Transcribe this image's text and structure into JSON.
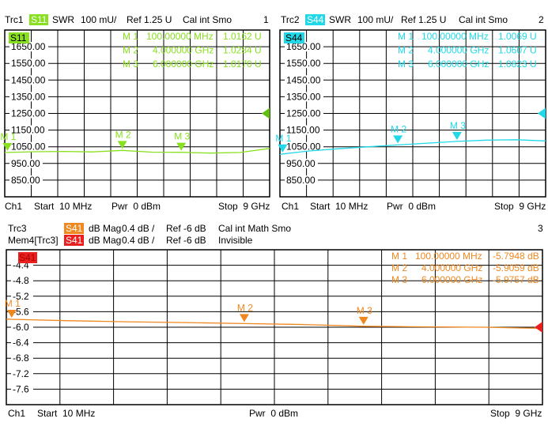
{
  "colors": {
    "trc1": "#88e020",
    "trc2": "#20d8e8",
    "trc3": "#f08820",
    "mem4": "#e82020",
    "grid": "#000000"
  },
  "panels": [
    {
      "header": {
        "trace": "Trc1",
        "param": "S11",
        "format": "SWR",
        "scale": "100 mU/",
        "ref": "Ref 1.25 U",
        "cal": "Cal int Smo",
        "num": "1"
      },
      "footer": {
        "ch": "Ch1",
        "start": "Start  10 MHz",
        "pwr": "Pwr  0 dBm",
        "stop": "Stop  9 GHz"
      },
      "markers": [
        {
          "name": "M 1",
          "freq": "100.00000 MHz",
          "value": "1.0162  U"
        },
        {
          "name": "M 2",
          "freq": "4.000000 GHz",
          "value": "1.0284  U"
        },
        {
          "name": "M 3",
          "freq": "6.000000 GHz",
          "value": "1.0170  U"
        }
      ]
    },
    {
      "header": {
        "trace": "Trc2",
        "param": "S44",
        "format": "SWR",
        "scale": "100 mU/",
        "ref": "Ref 1.25 U",
        "cal": "Cal int Smo",
        "num": "2"
      },
      "footer": {
        "ch": "Ch1",
        "start": "Start  10 MHz",
        "pwr": "Pwr  0 dBm",
        "stop": "Stop  9 GHz"
      },
      "markers": [
        {
          "name": "M 1",
          "freq": "100.00000 MHz",
          "value": "1.0069  U"
        },
        {
          "name": "M 2",
          "freq": "4.000000 GHz",
          "value": "1.0607  U"
        },
        {
          "name": "M 3",
          "freq": "6.000000 GHz",
          "value": "1.0823  U"
        }
      ]
    },
    {
      "header": {
        "trace": "Trc3",
        "param": "S41",
        "format": "dB Mag",
        "scale": "0.4 dB /",
        "ref": "Ref -6 dB",
        "cal": "Cal int Math Smo",
        "num": "3"
      },
      "header2": {
        "trace": "Mem4[Trc3]",
        "param": "S41",
        "format": "dB Mag",
        "scale": "0.4 dB /",
        "ref": "Ref -6 dB",
        "cal": "Invisible"
      },
      "footer": {
        "ch": "Ch1",
        "start": "Start  10 MHz",
        "pwr": "Pwr  0 dBm",
        "stop": "Stop  9 GHz"
      },
      "markers": [
        {
          "name": "M 1",
          "freq": "100.00000 MHz",
          "value": "-5.7948 dB"
        },
        {
          "name": "M 2",
          "freq": "4.000000 GHz",
          "value": "-5.9059 dB"
        },
        {
          "name": "M 3",
          "freq": "6.000000 GHz",
          "value": "-5.9757 dB"
        }
      ]
    }
  ],
  "chart_data": [
    {
      "type": "line",
      "trace": "Trc1 S11",
      "xunit": "GHz",
      "xlim": [
        0.01,
        9
      ],
      "ylim": [
        750,
        1750
      ],
      "yticks": [
        "1650.00",
        "1550.00",
        "1450.00",
        "1350.00",
        "1250.00",
        "1150.00",
        "1050.00",
        "950.00",
        "850.00"
      ],
      "grid": true,
      "ref_value": 1250,
      "x": [
        0.01,
        0.1,
        1,
        2,
        3,
        4,
        5,
        6,
        7,
        8,
        9
      ],
      "y": [
        1016,
        1016,
        1020,
        1022,
        1019,
        1028,
        1018,
        1017,
        1012,
        1016,
        1040
      ],
      "marker_x": [
        0.1,
        4,
        6
      ],
      "marker_y": [
        1016,
        1028,
        1017
      ]
    },
    {
      "type": "line",
      "trace": "Trc2 S44",
      "xunit": "GHz",
      "xlim": [
        0.01,
        9
      ],
      "ylim": [
        750,
        1750
      ],
      "yticks": [
        "1650.00",
        "1550.00",
        "1450.00",
        "1350.00",
        "1250.00",
        "1150.00",
        "1050.00",
        "950.00",
        "850.00"
      ],
      "grid": true,
      "ref_value": 1250,
      "x": [
        0.01,
        0.1,
        1,
        2,
        3,
        4,
        5,
        6,
        7,
        8,
        9
      ],
      "y": [
        1003,
        1007,
        1025,
        1038,
        1050,
        1061,
        1072,
        1082,
        1090,
        1092,
        1085
      ],
      "marker_x": [
        0.1,
        4,
        6
      ],
      "marker_y": [
        1007,
        1061,
        1082
      ]
    },
    {
      "type": "line",
      "trace": "Trc3 S41",
      "xunit": "GHz",
      "xlim": [
        0.01,
        9
      ],
      "ylim": [
        -8,
        -4
      ],
      "yticks": [
        "-4.4",
        "-4.8",
        "-5.2",
        "-5.6",
        "-6.0",
        "-6.4",
        "-6.8",
        "-7.2",
        "-7.6"
      ],
      "grid": true,
      "ref_value": -6,
      "x": [
        0.01,
        0.1,
        1,
        2,
        3,
        4,
        5,
        6,
        7,
        8,
        9
      ],
      "y": [
        -5.79,
        -5.795,
        -5.83,
        -5.86,
        -5.88,
        -5.906,
        -5.93,
        -5.976,
        -5.99,
        -6.0,
        -6.03
      ],
      "marker_x": [
        0.1,
        4,
        6
      ],
      "marker_y": [
        -5.795,
        -5.906,
        -5.976
      ]
    }
  ]
}
